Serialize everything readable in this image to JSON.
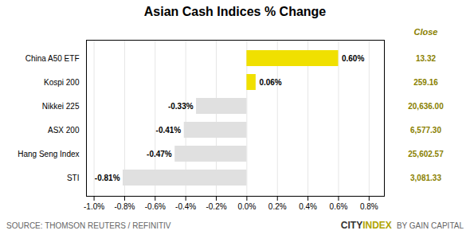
{
  "chart_data": {
    "type": "bar",
    "orientation": "horizontal",
    "title": "Asian Cash Indices % Change",
    "categories": [
      "China A50 ETF",
      "Kospi 200",
      "Nikkei 225",
      "ASX 200",
      "Hang Seng Index",
      "STI"
    ],
    "values": [
      0.6,
      0.06,
      -0.33,
      -0.41,
      -0.47,
      -0.81
    ],
    "value_labels": [
      "0.60%",
      "0.06%",
      "-0.33%",
      "-0.41%",
      "-0.47%",
      "-0.81%"
    ],
    "data_labels": true,
    "colors": [
      "#f0e000",
      "#f0e000",
      "#e0e0e0",
      "#e0e0e0",
      "#e0e0e0",
      "#e0e0e0"
    ],
    "xlim": [
      -1.05,
      0.9
    ],
    "xticks": [
      {
        "value": -1.0,
        "label": "-1.0%"
      },
      {
        "value": -0.8,
        "label": "-0.8%"
      },
      {
        "value": -0.6,
        "label": "-0.6%"
      },
      {
        "value": -0.4,
        "label": "-0.4%"
      },
      {
        "value": -0.2,
        "label": "-0.2%"
      },
      {
        "value": 0.0,
        "label": "0.0%"
      },
      {
        "value": 0.2,
        "label": "0.2%"
      },
      {
        "value": 0.4,
        "label": "0.4%"
      },
      {
        "value": 0.6,
        "label": "0.6%"
      },
      {
        "value": 0.8,
        "label": "0.8%"
      }
    ],
    "grid": true,
    "close_header": "Close",
    "close_values": [
      "13.32",
      "259.16",
      "20,636.00",
      "6,577.30",
      "25,602.57",
      "3,081.33"
    ],
    "annotations": [
      "SOURCE: THOMSON REUTERS / REFINITIV",
      "CITY",
      "INDEX",
      "BY GAIN CAPITAL"
    ]
  }
}
